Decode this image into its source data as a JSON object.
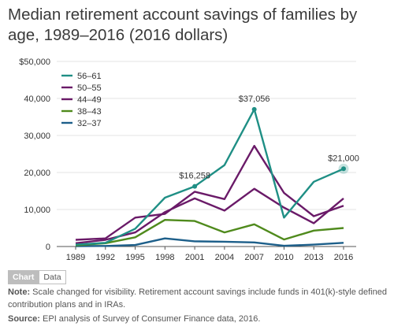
{
  "title": "Median retirement account savings of families by age, 1989–2016 (2016 dollars)",
  "tabs": {
    "chart_label": "Chart",
    "data_label": "Data"
  },
  "note": {
    "label": "Note:",
    "text": " Scale changed for visibility. Retirement account savings include funds in 401(k)-style defined contribution plans and in IRAs."
  },
  "source": {
    "label": "Source:",
    "text": " EPI analysis of Survey of Consumer Finance data, 2016."
  },
  "chart_data": {
    "type": "line",
    "x": [
      "1989",
      "1992",
      "1995",
      "1998",
      "2001",
      "2004",
      "2007",
      "2010",
      "2013",
      "2016"
    ],
    "y_ticks": [
      "0",
      "10,000",
      "20,000",
      "30,000",
      "40,000",
      "$50,000"
    ],
    "ylim": [
      0,
      50000
    ],
    "grid": true,
    "legend_position": "top-left",
    "series": [
      {
        "name": "56–61",
        "color": "#1f8f85",
        "values": [
          500,
          1000,
          4800,
          13200,
          16258,
          22000,
          37056,
          7800,
          17500,
          21000
        ]
      },
      {
        "name": "50–55",
        "color": "#6a1a68",
        "values": [
          1800,
          2200,
          7800,
          8800,
          14800,
          12800,
          27200,
          14500,
          8200,
          11000
        ]
      },
      {
        "name": "44–49",
        "color": "#6a1a68",
        "values": [
          900,
          1800,
          3800,
          9300,
          13000,
          9700,
          15600,
          10500,
          6300,
          13000
        ]
      },
      {
        "name": "38–43",
        "color": "#4f8a1c",
        "values": [
          300,
          900,
          2500,
          7200,
          6900,
          3800,
          6000,
          1900,
          4300,
          5000
        ]
      },
      {
        "name": "32–37",
        "color": "#1d5f8a",
        "values": [
          100,
          150,
          400,
          2200,
          1400,
          1300,
          1100,
          200,
          500,
          1000
        ]
      }
    ],
    "annotations": [
      {
        "text": "$16,258",
        "series": "56–61",
        "x": "2001"
      },
      {
        "text": "$37,056",
        "series": "56–61",
        "x": "2007"
      },
      {
        "text": "$21,000",
        "series": "56–61",
        "x": "2016"
      }
    ]
  }
}
